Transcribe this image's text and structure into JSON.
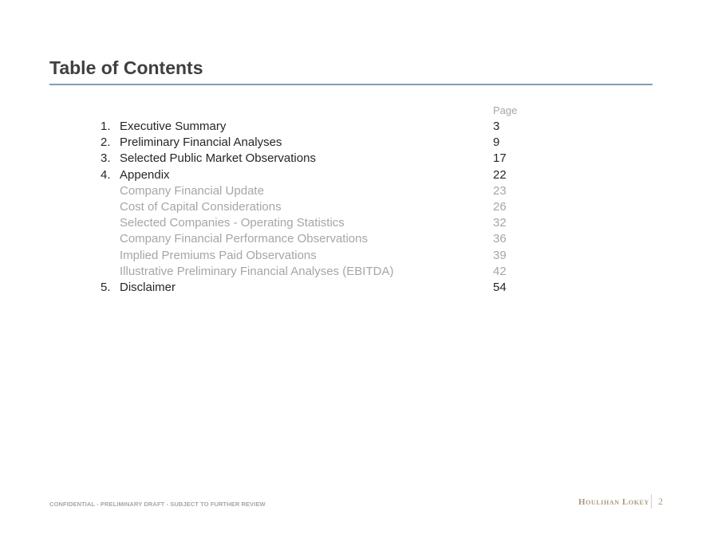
{
  "header": {
    "title": "Table of Contents"
  },
  "toc": {
    "page_header": "Page",
    "items": [
      {
        "num": "1.",
        "label": "Executive Summary",
        "page": "3",
        "level": 1
      },
      {
        "num": "2.",
        "label": "Preliminary Financial Analyses",
        "page": "9",
        "level": 1
      },
      {
        "num": "3.",
        "label": "Selected Public Market Observations",
        "page": "17",
        "level": 1
      },
      {
        "num": "4.",
        "label": "Appendix",
        "page": "22",
        "level": 1
      },
      {
        "num": "",
        "label": "Company Financial Update",
        "page": "23",
        "level": 2
      },
      {
        "num": "",
        "label": "Cost of Capital Considerations",
        "page": "26",
        "level": 2
      },
      {
        "num": "",
        "label": "Selected Companies - Operating Statistics",
        "page": "32",
        "level": 2
      },
      {
        "num": "",
        "label": "Company Financial Performance Observations",
        "page": "36",
        "level": 2
      },
      {
        "num": "",
        "label": "Implied Premiums Paid Observations",
        "page": "39",
        "level": 2
      },
      {
        "num": "",
        "label": "Illustrative Preliminary Financial Analyses (EBITDA)",
        "page": "42",
        "level": 2
      },
      {
        "num": "5.",
        "label": "Disclaimer",
        "page": "54",
        "level": 1
      }
    ]
  },
  "footer": {
    "confidential": "CONFIDENTIAL - PRELIMINARY DRAFT - SUBJECT TO FURTHER REVIEW",
    "logo": "Houlihan Lokey",
    "page_number": "2"
  },
  "colors": {
    "title": "#404040",
    "rule": "#7f9fb5",
    "subitem": "#a6a6a6",
    "logo": "#a89a7e"
  }
}
